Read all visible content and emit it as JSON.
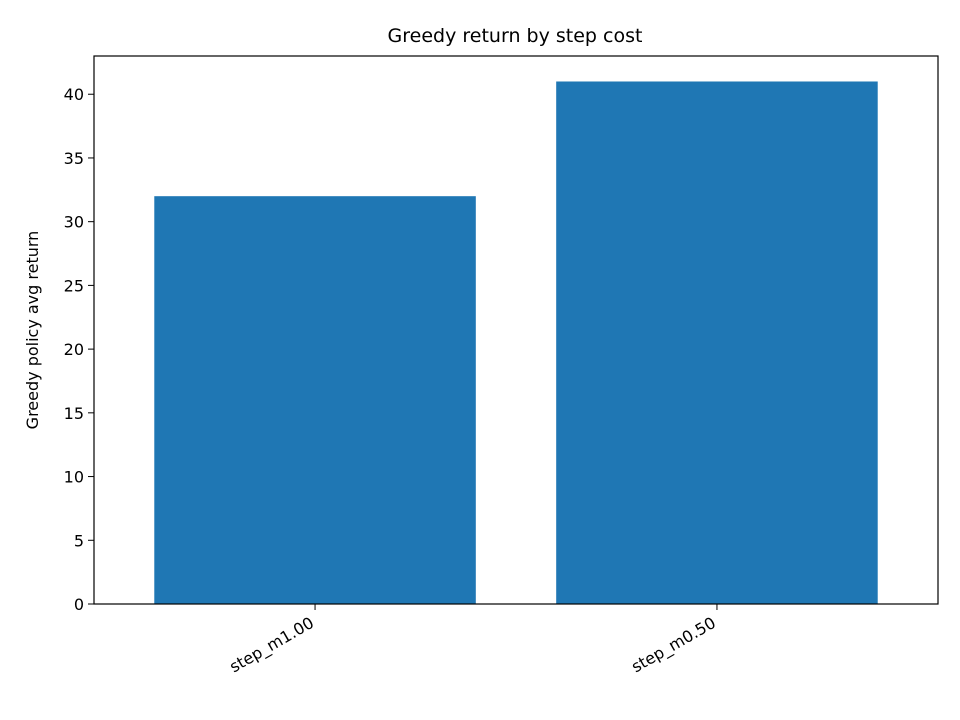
{
  "chart_data": {
    "type": "bar",
    "title": "Greedy return by step cost",
    "xlabel": "",
    "ylabel": "Greedy policy avg return",
    "categories": [
      "step_m1.00",
      "step_m0.50"
    ],
    "values": [
      32.0,
      41.0
    ],
    "ylim": [
      0,
      43
    ],
    "yticks": [
      0,
      5,
      10,
      15,
      20,
      25,
      30,
      35,
      40
    ],
    "bar_color": "#1f77b4",
    "grid": false,
    "legend": "none",
    "xtick_rotation": "30"
  }
}
